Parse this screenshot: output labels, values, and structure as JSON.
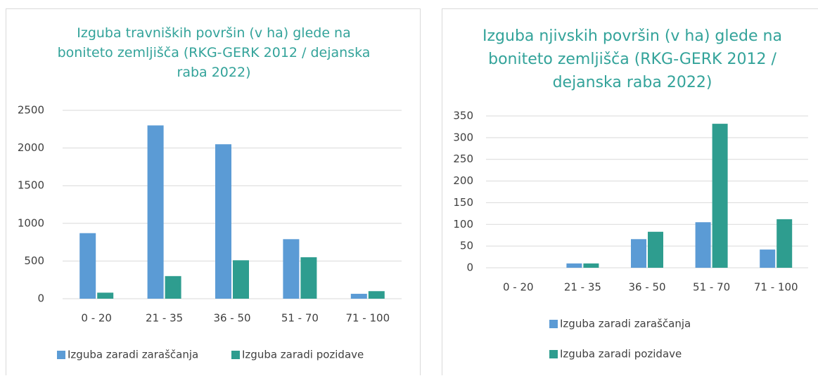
{
  "chart_data": [
    {
      "type": "bar",
      "title": "Izguba travniških površin (v ha) glede na boniteto zemljišča (RKG-GERK 2012 / dejanska raba 2022)",
      "categories": [
        "0 - 20",
        "21 - 35",
        "36 - 50",
        "51 - 70",
        "71 - 100"
      ],
      "series": [
        {
          "name": "Izguba zaradi zaraščanja",
          "color": "#5b9bd5",
          "values": [
            870,
            2300,
            2050,
            790,
            65
          ]
        },
        {
          "name": "Izguba zaradi pozidave",
          "color": "#2e9d8f",
          "values": [
            80,
            300,
            510,
            550,
            100
          ]
        }
      ],
      "ylim": [
        0,
        2500
      ],
      "yticks": [
        0,
        500,
        1000,
        1500,
        2000,
        2500
      ],
      "grid": true,
      "legend": "bottom"
    },
    {
      "type": "bar",
      "title": "Izguba njivskih površin (v ha) glede na boniteto zemljišča (RKG-GERK 2012 / dejanska raba 2022)",
      "categories": [
        "0 - 20",
        "21 - 35",
        "36 - 50",
        "51 - 70",
        "71 - 100"
      ],
      "series": [
        {
          "name": "Izguba zaradi zaraščanja",
          "color": "#5b9bd5",
          "values": [
            0,
            10,
            66,
            105,
            42
          ]
        },
        {
          "name": "Izguba zaradi pozidave",
          "color": "#2e9d8f",
          "values": [
            0,
            10,
            83,
            332,
            112
          ]
        }
      ],
      "ylim": [
        0,
        350
      ],
      "yticks": [
        0,
        50,
        100,
        150,
        200,
        250,
        300,
        350
      ],
      "grid": true,
      "legend": "bottom"
    }
  ]
}
